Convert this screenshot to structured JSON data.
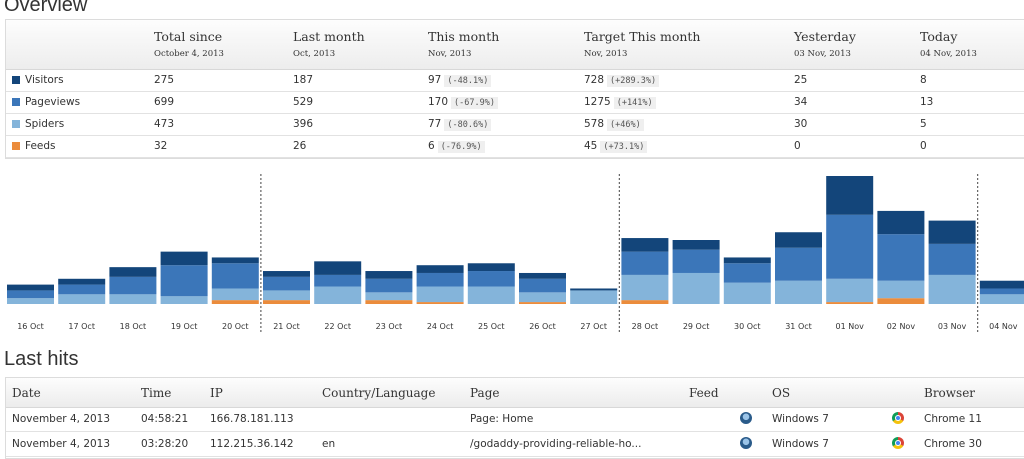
{
  "overview": {
    "title": "Overview",
    "columns": [
      {
        "label": "Total since",
        "sub": "October 4, 2013"
      },
      {
        "label": "Last month",
        "sub": "Oct, 2013"
      },
      {
        "label": "This month",
        "sub": "Nov, 2013"
      },
      {
        "label": "Target This month",
        "sub": "Nov, 2013"
      },
      {
        "label": "Yesterday",
        "sub": "03 Nov, 2013"
      },
      {
        "label": "Today",
        "sub": "04 Nov, 2013"
      }
    ],
    "rows": [
      {
        "name": "Visitors",
        "color": "#13457a",
        "total": "275",
        "last_month": "187",
        "this_month": "97",
        "this_month_pct": "(-48.1%)",
        "target": "728",
        "target_pct": "(+289.3%)",
        "yesterday": "25",
        "today": "8"
      },
      {
        "name": "Pageviews",
        "color": "#3b76b9",
        "total": "699",
        "last_month": "529",
        "this_month": "170",
        "this_month_pct": "(-67.9%)",
        "target": "1275",
        "target_pct": "(+141%)",
        "yesterday": "34",
        "today": "13"
      },
      {
        "name": "Spiders",
        "color": "#84b4da",
        "total": "473",
        "last_month": "396",
        "this_month": "77",
        "this_month_pct": "(-80.6%)",
        "target": "578",
        "target_pct": "(+46%)",
        "yesterday": "30",
        "today": "5"
      },
      {
        "name": "Feeds",
        "color": "#eb8c3c",
        "total": "32",
        "last_month": "26",
        "this_month": "6",
        "this_month_pct": "(-76.9%)",
        "target": "45",
        "target_pct": "(+73.1%)",
        "yesterday": "0",
        "today": "0"
      }
    ]
  },
  "chart_data": {
    "type": "bar",
    "stacked": true,
    "categories": [
      "16 Oct",
      "17 Oct",
      "18 Oct",
      "19 Oct",
      "20 Oct",
      "21 Oct",
      "22 Oct",
      "23 Oct",
      "24 Oct",
      "25 Oct",
      "26 Oct",
      "27 Oct",
      "28 Oct",
      "29 Oct",
      "30 Oct",
      "31 Oct",
      "01 Nov",
      "02 Nov",
      "03 Nov",
      "04 Nov"
    ],
    "week_separators_after": [
      "20 Oct",
      "27 Oct",
      "03 Nov"
    ],
    "series": [
      {
        "name": "Feeds",
        "color": "#eb8c3c",
        "values": [
          0,
          0,
          0,
          0,
          2,
          2,
          0,
          2,
          1,
          0,
          1,
          0,
          2,
          0,
          0,
          0,
          1,
          3,
          0,
          0
        ]
      },
      {
        "name": "Spiders",
        "color": "#84b4da",
        "values": [
          3,
          5,
          5,
          4,
          6,
          5,
          9,
          4,
          8,
          9,
          5,
          7,
          13,
          16,
          11,
          12,
          12,
          9,
          15,
          5
        ]
      },
      {
        "name": "Pageviews",
        "color": "#3b76b9",
        "values": [
          4,
          5,
          9,
          16,
          13,
          7,
          6,
          7,
          7,
          8,
          7,
          0,
          12,
          12,
          10,
          17,
          33,
          24,
          16,
          3
        ]
      },
      {
        "name": "Visitors",
        "color": "#13457a",
        "values": [
          3,
          3,
          5,
          7,
          3,
          3,
          7,
          4,
          4,
          4,
          3,
          1,
          7,
          5,
          3,
          8,
          20,
          12,
          12,
          4
        ]
      }
    ],
    "ylim": [
      0,
      66
    ]
  },
  "last_hits": {
    "title": "Last hits",
    "headers": {
      "date": "Date",
      "time": "Time",
      "ip": "IP",
      "country": "Country/Language",
      "page": "Page",
      "feed": "Feed",
      "os": "OS",
      "browser": "Browser"
    },
    "rows": [
      {
        "date": "November 4, 2013",
        "time": "04:58:21",
        "ip": "166.78.181.113",
        "country": "",
        "page": "Page: Home",
        "feed": "",
        "os": "Windows 7",
        "os_icon": "windows-icon",
        "browser": "Chrome 11",
        "browser_icon": "chrome-icon"
      },
      {
        "date": "November 4, 2013",
        "time": "03:28:20",
        "ip": "112.215.36.142",
        "country": "en",
        "page": "/godaddy-providing-reliable-ho...",
        "feed": "",
        "os": "Windows 7",
        "os_icon": "windows-icon",
        "browser": "Chrome 30",
        "browser_icon": "chrome-icon"
      }
    ]
  }
}
